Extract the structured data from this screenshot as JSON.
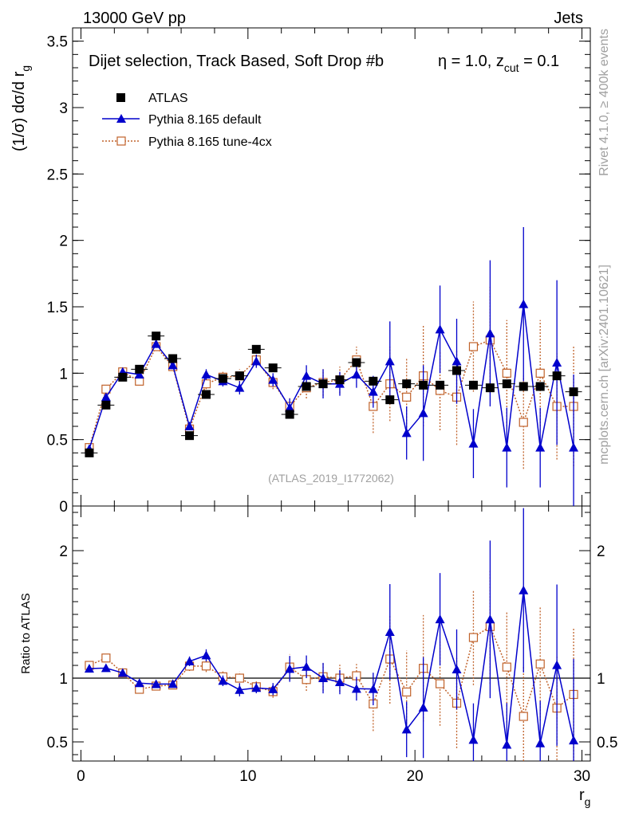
{
  "header": {
    "energy_label": "13000 GeV pp",
    "category_label": "Jets",
    "watermark": "(ATLAS_2019_I1772062)",
    "side_label_top": "Rivet 4.1.0, ≥ 400k events",
    "side_label_bottom": "mcplots.cern.ch [arXiv:2401.10621]"
  },
  "labels": {
    "selection_main": "Dijet selection, Track Based, Soft Drop #b",
    "selection_eta": "η = 1.0, z",
    "selection_cut_sub": "cut",
    "selection_cut_val": " = 0.1",
    "ylabel_main": "(1/σ) dσ/d r",
    "ylabel_main_sub": "g",
    "ylabel_ratio": "Ratio to ATLAS",
    "xlabel": "r",
    "xlabel_sub": "g"
  },
  "colors": {
    "atlas": "#000000",
    "default": "#0000cc",
    "tune": "#c0622a"
  },
  "chart_data": {
    "type": "scatter",
    "x": [
      0.5,
      1.5,
      2.5,
      3.5,
      4.5,
      5.5,
      6.5,
      7.5,
      8.5,
      9.5,
      10.5,
      11.5,
      12.5,
      13.5,
      14.5,
      15.5,
      16.5,
      17.5,
      18.5,
      19.5,
      20.5,
      21.5,
      22.5,
      23.5,
      24.5,
      25.5,
      26.5,
      27.5,
      28.5,
      29.5
    ],
    "xlim": [
      -0.5,
      30.5
    ],
    "x_ticks": [
      0,
      10,
      20,
      30
    ],
    "main": {
      "ylim": [
        0,
        3.6
      ],
      "y_ticks": [
        0,
        0.5,
        1,
        1.5,
        2,
        2.5,
        3,
        3.5
      ],
      "y_tick_labels": [
        "0",
        "0.5",
        "1",
        "1.5",
        "2",
        "2.5",
        "3",
        "3.5"
      ]
    },
    "ratio": {
      "ylim": [
        0.35,
        2.35
      ],
      "y_ticks": [
        0.5,
        1,
        2
      ],
      "y_tick_labels": [
        "0.5",
        "1",
        "2"
      ],
      "reference": 1.0
    },
    "legend": [
      "ATLAS",
      "Pythia 8.165 default",
      "Pythia 8.165 tune-4cx"
    ],
    "series": [
      {
        "name": "ATLAS",
        "values": [
          0.4,
          0.76,
          0.97,
          1.03,
          1.28,
          1.11,
          0.53,
          0.84,
          0.96,
          0.98,
          1.18,
          1.04,
          0.69,
          0.9,
          0.92,
          0.95,
          1.08,
          0.94,
          0.8,
          0.92,
          0.91,
          0.91,
          1.02,
          0.91,
          0.89,
          0.92,
          0.9,
          0.9,
          0.98,
          0.86
        ]
      },
      {
        "name": "Pythia 8.165 default",
        "values": [
          0.43,
          0.82,
          1.01,
          0.99,
          1.22,
          1.06,
          0.6,
          0.99,
          0.94,
          0.89,
          1.09,
          0.95,
          0.74,
          0.98,
          0.92,
          0.92,
          0.99,
          0.86,
          1.09,
          0.55,
          0.7,
          1.33,
          1.09,
          0.47,
          1.3,
          0.44,
          1.52,
          0.44,
          1.08,
          0.44
        ],
        "errors": [
          0.01,
          0.01,
          0.01,
          0.02,
          0.02,
          0.02,
          0.02,
          0.04,
          0.04,
          0.05,
          0.05,
          0.05,
          0.07,
          0.08,
          0.11,
          0.09,
          0.1,
          0.12,
          0.3,
          0.2,
          0.36,
          0.33,
          0.32,
          0.26,
          0.55,
          0.3,
          0.58,
          0.3,
          0.62,
          0.55
        ]
      },
      {
        "name": "Pythia 8.165 tune-4cx",
        "values": [
          0.44,
          0.88,
          1.01,
          0.94,
          1.2,
          1.05,
          0.58,
          0.92,
          0.97,
          0.98,
          1.1,
          0.93,
          0.75,
          0.89,
          0.93,
          0.95,
          1.1,
          0.75,
          0.92,
          0.82,
          0.98,
          0.87,
          0.82,
          1.2,
          1.25,
          1.0,
          0.63,
          1.0,
          0.75,
          0.75
        ],
        "errors": [
          0.01,
          0.01,
          0.01,
          0.02,
          0.02,
          0.02,
          0.02,
          0.04,
          0.04,
          0.05,
          0.05,
          0.05,
          0.07,
          0.08,
          0.1,
          0.1,
          0.1,
          0.2,
          0.28,
          0.3,
          0.38,
          0.3,
          0.36,
          0.34,
          0.4,
          0.4,
          0.35,
          0.4,
          0.4,
          0.45
        ]
      }
    ]
  }
}
